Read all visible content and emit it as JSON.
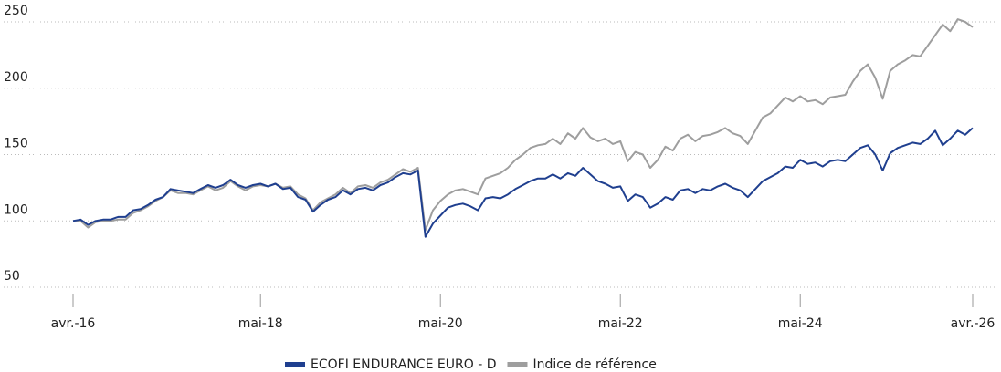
{
  "chart_data": {
    "type": "line",
    "categories": [
      "avr.-16",
      null,
      null,
      null,
      null,
      null,
      null,
      null,
      null,
      null,
      null,
      null,
      null,
      null,
      null,
      null,
      null,
      null,
      null,
      null,
      null,
      null,
      null,
      null,
      null,
      "mai-18",
      null,
      null,
      null,
      null,
      null,
      null,
      null,
      null,
      null,
      null,
      null,
      null,
      null,
      null,
      null,
      null,
      null,
      null,
      null,
      null,
      null,
      null,
      null,
      "mai-20",
      null,
      null,
      null,
      null,
      null,
      null,
      null,
      null,
      null,
      null,
      null,
      null,
      null,
      null,
      null,
      null,
      null,
      null,
      null,
      null,
      null,
      null,
      null,
      "mai-22",
      null,
      null,
      null,
      null,
      null,
      null,
      null,
      null,
      null,
      null,
      null,
      null,
      null,
      null,
      null,
      null,
      null,
      null,
      null,
      null,
      null,
      null,
      null,
      "mai-24",
      null,
      null,
      null,
      null,
      null,
      null,
      null,
      null,
      null,
      null,
      null,
      null,
      null,
      null,
      null,
      null,
      null,
      null,
      null,
      null,
      null,
      null,
      "avr.-26"
    ],
    "series": [
      {
        "name": "ECOFI ENDURANCE EURO - D",
        "color": "#1f3f8f",
        "values": [
          100,
          101,
          97,
          100,
          101,
          101,
          103,
          103,
          108,
          109,
          112,
          116,
          118,
          124,
          123,
          122,
          121,
          124,
          127,
          125,
          127,
          131,
          127,
          125,
          127,
          128,
          126,
          128,
          124,
          125,
          118,
          116,
          107,
          112,
          116,
          118,
          123,
          120,
          124,
          125,
          123,
          127,
          129,
          133,
          136,
          135,
          138,
          88,
          98,
          104,
          110,
          112,
          113,
          111,
          108,
          117,
          118,
          117,
          120,
          124,
          127,
          130,
          132,
          132,
          135,
          132,
          136,
          134,
          140,
          135,
          130,
          128,
          125,
          126,
          115,
          120,
          118,
          110,
          113,
          118,
          116,
          123,
          124,
          121,
          124,
          123,
          126,
          128,
          125,
          123,
          118,
          124,
          130,
          133,
          136,
          141,
          140,
          146,
          143,
          144,
          141,
          145,
          146,
          145,
          150,
          155,
          157,
          150,
          138,
          151,
          155,
          157,
          159,
          158,
          162,
          168,
          157,
          162,
          168,
          165,
          170
        ]
      },
      {
        "name": "Indice de référence",
        "color": "#9e9e9e",
        "values": [
          100,
          100,
          95,
          99,
          100,
          100,
          101,
          101,
          106,
          108,
          111,
          115,
          118,
          123,
          121,
          121,
          120,
          123,
          126,
          123,
          125,
          130,
          126,
          123,
          126,
          127,
          126,
          128,
          125,
          126,
          120,
          117,
          108,
          114,
          117,
          120,
          125,
          121,
          126,
          127,
          125,
          129,
          131,
          135,
          139,
          137,
          140,
          93,
          108,
          115,
          120,
          123,
          124,
          122,
          120,
          132,
          134,
          136,
          140,
          146,
          150,
          155,
          157,
          158,
          162,
          158,
          166,
          162,
          170,
          163,
          160,
          162,
          158,
          160,
          145,
          152,
          150,
          140,
          146,
          156,
          153,
          162,
          165,
          160,
          164,
          165,
          167,
          170,
          166,
          164,
          158,
          168,
          178,
          181,
          187,
          193,
          190,
          194,
          190,
          191,
          188,
          193,
          194,
          195,
          205,
          213,
          218,
          208,
          192,
          213,
          218,
          221,
          225,
          224,
          232,
          240,
          248,
          243,
          252,
          250,
          246
        ]
      }
    ],
    "ylim": [
      50,
      250
    ],
    "yticks": [
      50,
      100,
      150,
      200,
      250
    ],
    "grid": true
  }
}
